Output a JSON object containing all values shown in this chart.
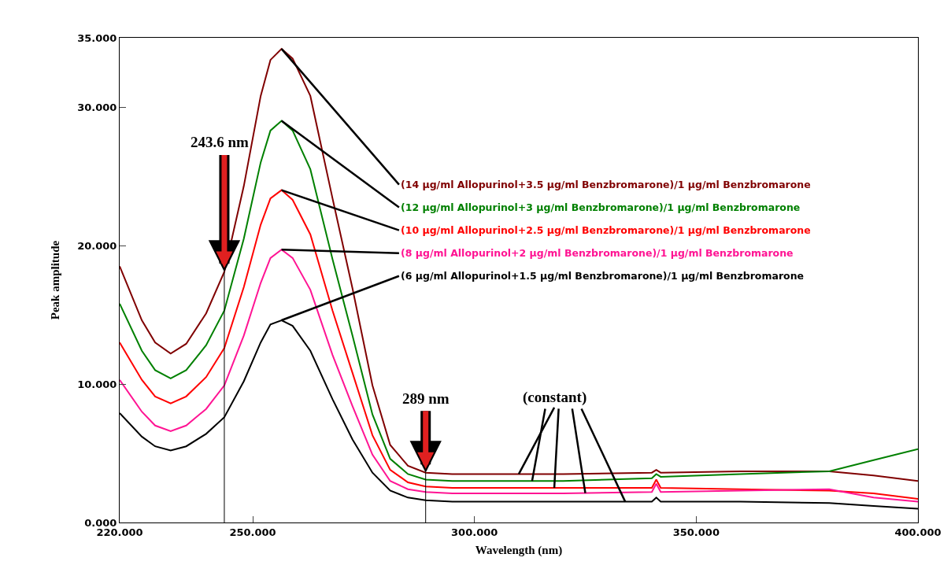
{
  "chart_data": {
    "type": "line",
    "xlabel": "Wavelength (nm)",
    "ylabel": "Peak amplitude",
    "x": [
      220,
      225,
      228,
      231.5,
      235,
      239.5,
      243.6,
      248,
      251.8,
      254,
      256.5,
      259,
      263,
      268,
      272.5,
      277,
      281,
      285,
      289,
      295,
      300,
      320,
      340,
      341,
      342,
      360,
      380,
      390,
      400
    ],
    "series": [
      {
        "name": "(14 μg/ml Allopurinol+3.5 μg/ml Benzbromarone)/1 μg/ml Benzbromarone",
        "color": "#800000",
        "values": [
          18.5,
          14.6,
          13.0,
          12.2,
          12.9,
          15.1,
          18.1,
          24.3,
          30.8,
          33.4,
          34.2,
          33.5,
          30.8,
          23.4,
          16.9,
          9.9,
          5.6,
          4.1,
          3.6,
          3.5,
          3.5,
          3.5,
          3.6,
          3.8,
          3.6,
          3.7,
          3.7,
          3.4,
          3.0
        ]
      },
      {
        "name": "(12 μg/ml Allopurinol+3 μg/ml Benzbromarone)/1 μg/ml Benzbromarone",
        "color": "#008000",
        "values": [
          15.8,
          12.4,
          11.0,
          10.4,
          11.0,
          12.8,
          15.3,
          20.5,
          26.0,
          28.3,
          29.0,
          28.3,
          25.5,
          19.0,
          13.5,
          7.8,
          4.6,
          3.5,
          3.1,
          3.0,
          3.0,
          3.0,
          3.2,
          3.5,
          3.3,
          3.5,
          3.7,
          4.5,
          5.3
        ]
      },
      {
        "name": "(10 μg/ml Allopurinol+2.5 μg/ml Benzbromarone)/1 μg/ml Benzbromarone",
        "color": "#ff0000",
        "values": [
          13.0,
          10.3,
          9.1,
          8.6,
          9.1,
          10.5,
          12.6,
          17.0,
          21.5,
          23.4,
          24.0,
          23.3,
          20.8,
          15.3,
          10.8,
          6.3,
          3.8,
          2.9,
          2.6,
          2.5,
          2.5,
          2.5,
          2.5,
          3.1,
          2.5,
          2.4,
          2.3,
          2.1,
          1.7
        ]
      },
      {
        "name": "(8 μg/ml Allopurinol+2 μg/ml Benzbromarone)/1 μg/ml Benzbromarone",
        "color": "#ff1493",
        "values": [
          10.3,
          8.0,
          7.0,
          6.6,
          7.0,
          8.2,
          9.9,
          13.5,
          17.3,
          19.1,
          19.7,
          19.1,
          16.8,
          12.1,
          8.4,
          4.9,
          3.0,
          2.4,
          2.2,
          2.1,
          2.1,
          2.1,
          2.2,
          2.8,
          2.2,
          2.3,
          2.4,
          1.8,
          1.5
        ]
      },
      {
        "name": "(6 μg/ml Allopurinol+1.5 μg/ml Benzbromarone)/1 μg/ml Benzbromarone",
        "color": "#000000",
        "values": [
          7.9,
          6.2,
          5.5,
          5.2,
          5.5,
          6.4,
          7.6,
          10.2,
          13.0,
          14.3,
          14.6,
          14.2,
          12.4,
          8.9,
          6.0,
          3.6,
          2.3,
          1.8,
          1.6,
          1.5,
          1.5,
          1.5,
          1.5,
          1.8,
          1.5,
          1.5,
          1.4,
          1.2,
          1.0
        ]
      }
    ],
    "xlim": [
      220,
      400
    ],
    "xticks": [
      {
        "value": 220,
        "label": "220.000"
      },
      {
        "value": 250,
        "label": "250.000"
      },
      {
        "value": 300,
        "label": "300.000"
      },
      {
        "value": 350,
        "label": "350.000"
      },
      {
        "value": 400,
        "label": "400.000"
      }
    ],
    "ylim": [
      0,
      35
    ],
    "yticks": [
      {
        "value": 0,
        "label": "0.000"
      },
      {
        "value": 10,
        "label": "10.000"
      },
      {
        "value": 20,
        "label": "20.000"
      },
      {
        "value": 30,
        "label": "30.000"
      },
      {
        "value": 35,
        "label": "35.000"
      }
    ],
    "ref_lines": [
      {
        "axis": "x",
        "value": 243.6,
        "label": "243.6 nm",
        "color": "#000000"
      },
      {
        "axis": "x",
        "value": 289,
        "label": "289 nm",
        "color": "#000000"
      }
    ],
    "annotations": [
      {
        "text": "(constant)",
        "x": 310,
        "y": 3.5
      }
    ],
    "legend": false,
    "marker": "none",
    "line_style": "solid"
  }
}
